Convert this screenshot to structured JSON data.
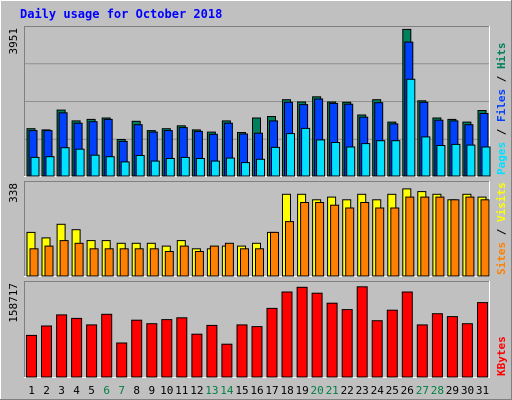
{
  "title": "Daily usage for October 2018",
  "colors": {
    "hits": "#00805c",
    "files": "#0040ff",
    "pages": "#00e0ff",
    "visits": "#ffff00",
    "sites": "#ff8000",
    "kbytes": "#ff0000",
    "title": "#0000ff",
    "background": "#c0c0c0",
    "plot_bg": "#c0c0c0",
    "grid": "#909090",
    "weekend_label": "#008040"
  },
  "chart_data": [
    {
      "type": "bar",
      "panel": "top",
      "ymax_label": "3951",
      "ylim": [
        0,
        3951
      ],
      "legend": [
        "Pages",
        "Files",
        "Hits"
      ],
      "series": [
        {
          "name": "Hits",
          "values": [
            1270,
            1240,
            1770,
            1480,
            1520,
            1560,
            980,
            1470,
            1220,
            1270,
            1350,
            1240,
            1180,
            1480,
            1170,
            1560,
            1600,
            2050,
            1990,
            2130,
            1990,
            1980,
            1640,
            2050,
            1450,
            3940,
            2020,
            1560,
            1520,
            1450,
            1760
          ]
        },
        {
          "name": "Files",
          "values": [
            1220,
            1220,
            1700,
            1420,
            1460,
            1520,
            930,
            1380,
            1180,
            1220,
            1300,
            1200,
            1120,
            1420,
            1130,
            1150,
            1480,
            1980,
            1920,
            2070,
            1950,
            1930,
            1580,
            1970,
            1400,
            3600,
            1980,
            1500,
            1480,
            1380,
            1680
          ]
        },
        {
          "name": "Pages",
          "values": [
            500,
            520,
            760,
            720,
            560,
            520,
            380,
            550,
            400,
            470,
            500,
            470,
            400,
            480,
            360,
            450,
            770,
            1140,
            1280,
            970,
            900,
            780,
            870,
            950,
            950,
            2600,
            1050,
            820,
            850,
            830,
            780
          ]
        }
      ]
    },
    {
      "type": "bar",
      "panel": "middle",
      "ymax_label": "338",
      "ylim": [
        0,
        338
      ],
      "legend": [
        "Sites",
        "Visits"
      ],
      "series": [
        {
          "name": "Visits",
          "values": [
            160,
            140,
            190,
            170,
            130,
            130,
            120,
            120,
            120,
            110,
            130,
            100,
            100,
            110,
            110,
            120,
            160,
            300,
            300,
            280,
            290,
            280,
            300,
            280,
            300,
            320,
            310,
            300,
            280,
            300,
            290
          ]
        },
        {
          "name": "Sites",
          "values": [
            100,
            110,
            130,
            120,
            100,
            100,
            100,
            100,
            100,
            90,
            110,
            90,
            110,
            120,
            100,
            100,
            160,
            200,
            270,
            270,
            260,
            250,
            270,
            250,
            250,
            290,
            290,
            290,
            280,
            290,
            280
          ]
        }
      ]
    },
    {
      "type": "bar",
      "panel": "bottom",
      "ymax_label": "158717",
      "ylim": [
        0,
        158717
      ],
      "legend": [
        "KBytes"
      ],
      "series": [
        {
          "name": "KBytes",
          "values": [
            71000,
            87000,
            106000,
            100000,
            89000,
            107000,
            58000,
            97000,
            91000,
            98000,
            101000,
            73000,
            88000,
            56000,
            89000,
            86000,
            117000,
            145000,
            153000,
            143000,
            126000,
            115000,
            154000,
            96000,
            114000,
            145000,
            89000,
            108000,
            103000,
            91000,
            127000
          ]
        }
      ]
    }
  ],
  "x_labels": [
    "1",
    "2",
    "3",
    "4",
    "5",
    "6",
    "7",
    "8",
    "9",
    "10",
    "11",
    "12",
    "13",
    "14",
    "15",
    "16",
    "17",
    "18",
    "19",
    "20",
    "21",
    "22",
    "23",
    "24",
    "25",
    "26",
    "27",
    "28",
    "29",
    "30",
    "31"
  ],
  "weekend_days": [
    6,
    7,
    13,
    14,
    20,
    21,
    27,
    28
  ]
}
